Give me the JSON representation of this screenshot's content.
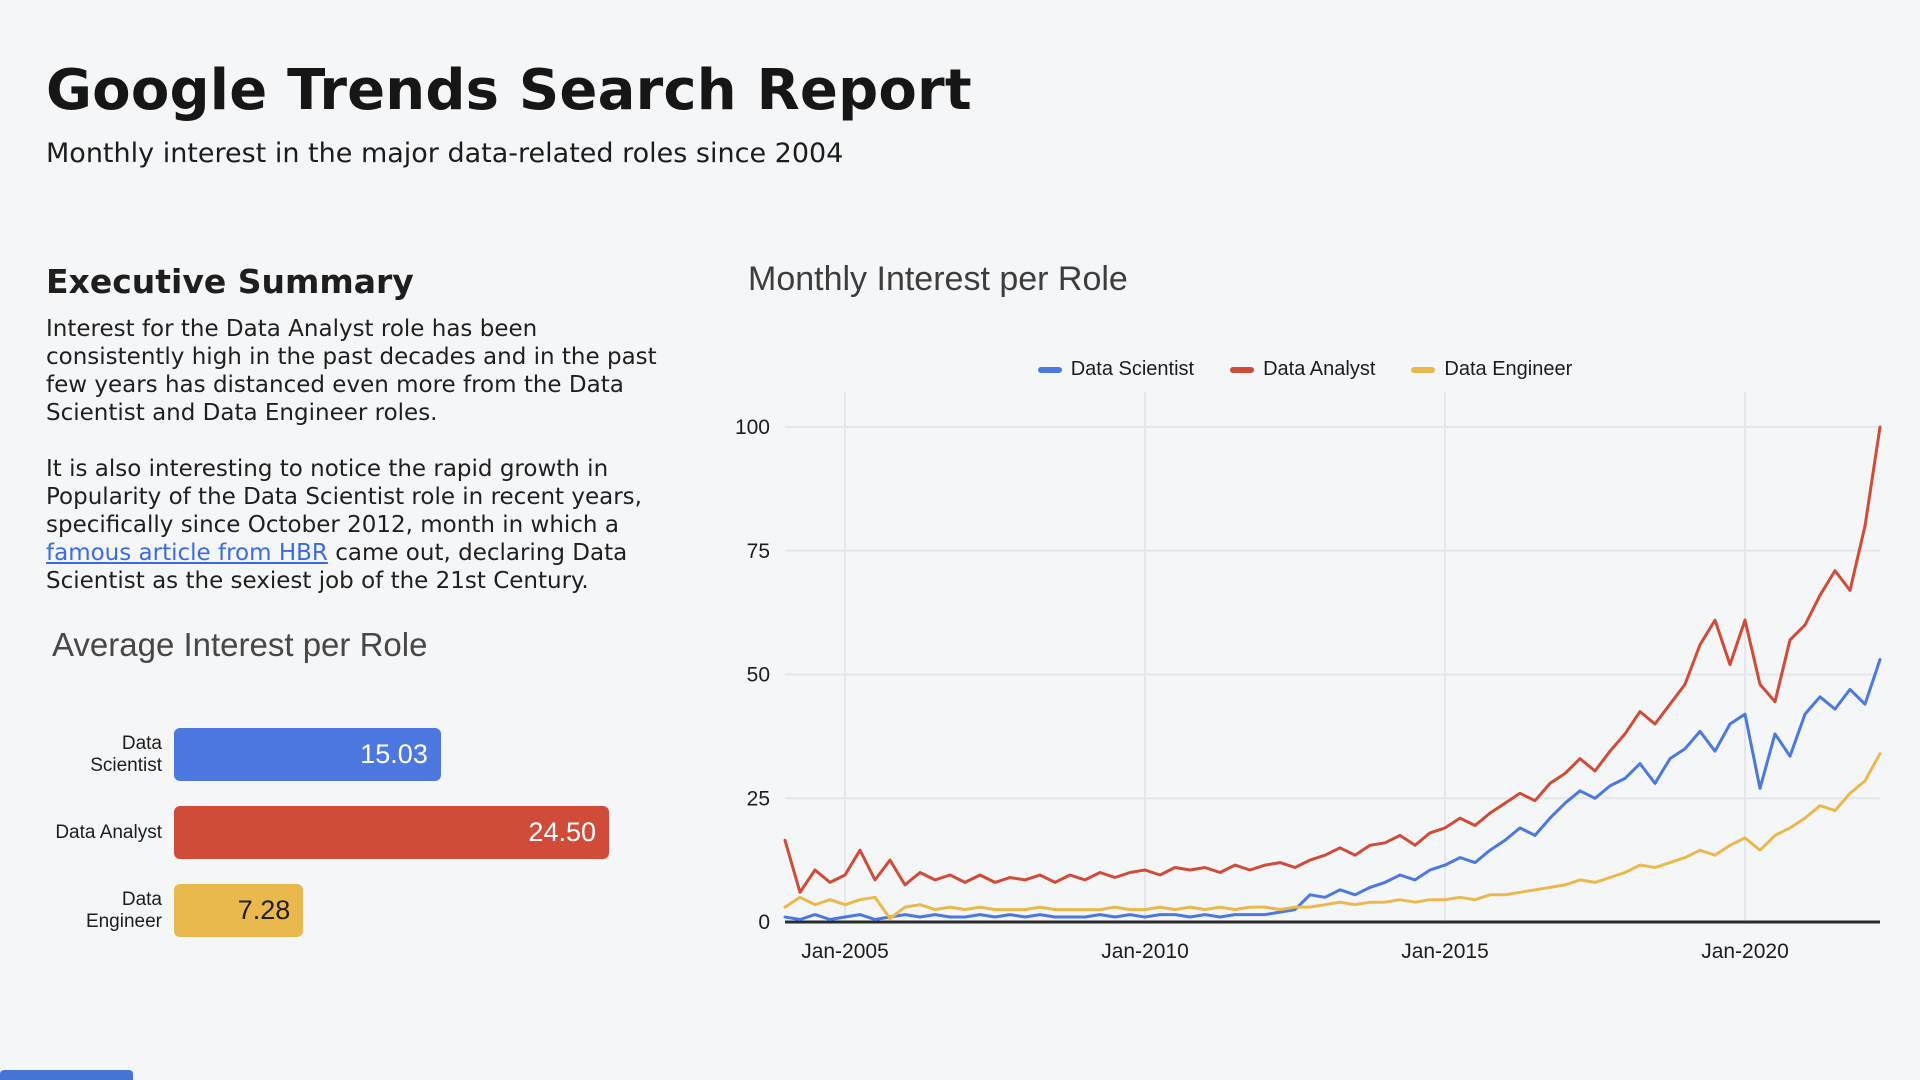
{
  "page": {
    "title": "Google Trends Search Report",
    "subtitle": "Monthly interest in the major data-related roles since 2004"
  },
  "summary": {
    "heading": "Executive Summary",
    "para1": "Interest for the Data Analyst role has been consistently high in the past decades and in the past few years has distanced even more from the Data Scientist and Data Engineer roles.",
    "para2_before_link": "It is also interesting to notice the rapid growth in Popularity of the Data Scientist role in recent years, specifically since October 2012, month in which a ",
    "para2_link": "famous article from HBR",
    "para2_after_link": " came out, declaring Data Scientist as the sexiest job of the 21st Century."
  },
  "colors": {
    "data_scientist": "#4C78E0",
    "data_analyst": "#D04B38",
    "data_engineer": "#EAB94D",
    "link": "#3B6BE3",
    "background": "#F5F6F8",
    "gridline": "#E4E6EA",
    "axis": "#2B2B2B"
  },
  "chart_data": [
    {
      "type": "bar",
      "title": "Average Interest per Role",
      "orientation": "horizontal",
      "categories": [
        "Data Scientist",
        "Data Analyst",
        "Data Engineer"
      ],
      "values": [
        15.03,
        24.5,
        7.28
      ],
      "value_labels": [
        "15.03",
        "24.50",
        "7.28"
      ],
      "colors": [
        "#4C78E0",
        "#D04B38",
        "#EAB94D"
      ],
      "value_text_colors": [
        "#ffffff",
        "#ffffff",
        "#1f1f1f"
      ],
      "xlim": [
        0,
        24.5
      ],
      "grid": false
    },
    {
      "type": "line",
      "title": "Monthly Interest per Role",
      "legend_position": "top-center",
      "x_ticks": [
        "Jan-2005",
        "Jan-2010",
        "Jan-2015",
        "Jan-2020"
      ],
      "x_tick_years": [
        2005,
        2010,
        2015,
        2020
      ],
      "y_ticks": [
        0,
        25,
        50,
        75,
        100
      ],
      "ylim": [
        0,
        100
      ],
      "xlim_years": [
        2004.0,
        2022.25
      ],
      "grid": true,
      "x_unit": "decimal_year_monthly_interest",
      "x": [
        2004,
        2004.25,
        2004.5,
        2004.75,
        2005,
        2005.25,
        2005.5,
        2005.75,
        2006,
        2006.25,
        2006.5,
        2006.75,
        2007,
        2007.25,
        2007.5,
        2007.75,
        2008,
        2008.25,
        2008.5,
        2008.75,
        2009,
        2009.25,
        2009.5,
        2009.75,
        2010,
        2010.25,
        2010.5,
        2010.75,
        2011,
        2011.25,
        2011.5,
        2011.75,
        2012,
        2012.25,
        2012.5,
        2012.75,
        2013,
        2013.25,
        2013.5,
        2013.75,
        2014,
        2014.25,
        2014.5,
        2014.75,
        2015,
        2015.25,
        2015.5,
        2015.75,
        2016,
        2016.25,
        2016.5,
        2016.75,
        2017,
        2017.25,
        2017.5,
        2017.75,
        2018,
        2018.25,
        2018.5,
        2018.75,
        2019,
        2019.25,
        2019.5,
        2019.75,
        2020,
        2020.25,
        2020.5,
        2020.75,
        2021,
        2021.25,
        2021.5,
        2021.75,
        2022,
        2022.25
      ],
      "series": [
        {
          "name": "Data Scientist",
          "color": "#4C78E0",
          "values": [
            1,
            0.5,
            1.5,
            0.5,
            1,
            1.5,
            0.5,
            1,
            1.5,
            1,
            1.5,
            1,
            1,
            1.5,
            1,
            1.5,
            1,
            1.5,
            1,
            1,
            1,
            1.5,
            1,
            1.5,
            1,
            1.5,
            1.5,
            1,
            1.5,
            1,
            1.5,
            1.5,
            1.5,
            2,
            2.5,
            5.5,
            5,
            6.5,
            5.5,
            7,
            8,
            9.5,
            8.5,
            10.5,
            11.5,
            13,
            12,
            14.5,
            16.5,
            19,
            17.5,
            21,
            24,
            26.5,
            25,
            27.5,
            29,
            32,
            28,
            33,
            35,
            38.5,
            34.5,
            40,
            42,
            27,
            38,
            33.5,
            42,
            45.5,
            43,
            47,
            44,
            53
          ]
        },
        {
          "name": "Data Analyst",
          "color": "#D04B38",
          "values": [
            16.5,
            6,
            10.5,
            8,
            9.5,
            14.5,
            8.5,
            12.5,
            7.5,
            10,
            8.5,
            9.5,
            8,
            9.5,
            8,
            9,
            8.5,
            9.5,
            8,
            9.5,
            8.5,
            10,
            9,
            10,
            10.5,
            9.5,
            11,
            10.5,
            11,
            10,
            11.5,
            10.5,
            11.5,
            12,
            11,
            12.5,
            13.5,
            15,
            13.5,
            15.5,
            16,
            17.5,
            15.5,
            18,
            19,
            21,
            19.5,
            22,
            24,
            26,
            24.5,
            28,
            30,
            33,
            30.5,
            34.5,
            38,
            42.5,
            40,
            44,
            48,
            56,
            61,
            52,
            61,
            48,
            44.5,
            57,
            60,
            66,
            71,
            67,
            80,
            100
          ]
        },
        {
          "name": "Data Engineer",
          "color": "#EAB94D",
          "values": [
            3,
            5,
            3.5,
            4.5,
            3.5,
            4.5,
            5,
            0.7,
            3,
            3.5,
            2.5,
            3,
            2.5,
            3,
            2.5,
            2.5,
            2.5,
            3,
            2.5,
            2.5,
            2.5,
            2.5,
            3,
            2.5,
            2.5,
            3,
            2.5,
            3,
            2.5,
            3,
            2.5,
            3,
            3,
            2.5,
            3,
            3,
            3.5,
            4,
            3.5,
            4,
            4,
            4.5,
            4,
            4.5,
            4.5,
            5,
            4.5,
            5.5,
            5.5,
            6,
            6.5,
            7,
            7.5,
            8.5,
            8,
            9,
            10,
            11.5,
            11,
            12,
            13,
            14.5,
            13.5,
            15.5,
            17,
            14.5,
            17.5,
            19,
            21,
            23.5,
            22.5,
            26,
            28.5,
            34
          ]
        }
      ]
    }
  ]
}
